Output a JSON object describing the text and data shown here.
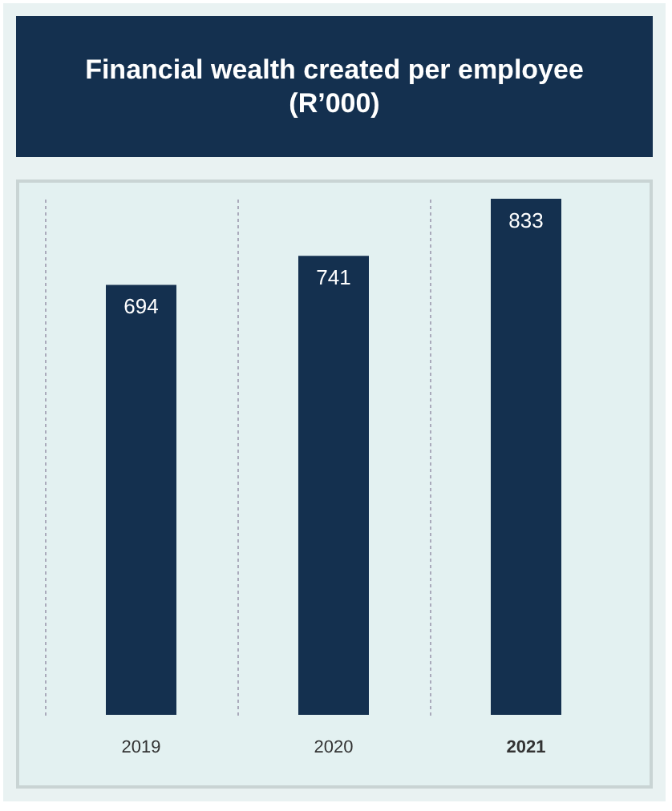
{
  "chart_data": {
    "type": "bar",
    "title": "Financial wealth created per employee (R’000)",
    "categories": [
      "2019",
      "2020",
      "2021"
    ],
    "values": [
      694,
      741,
      833
    ],
    "color": "#14304f",
    "data_labels": true,
    "grid": "x",
    "tick_labels": "x"
  }
}
